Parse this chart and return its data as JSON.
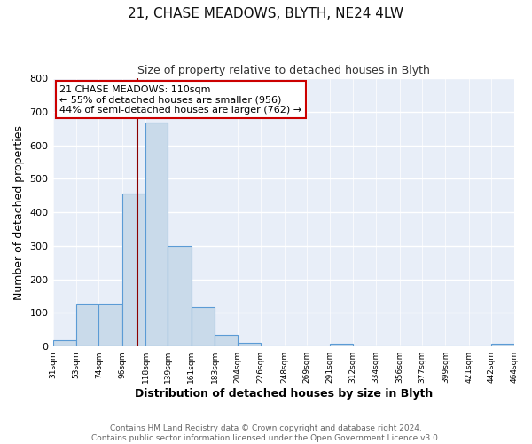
{
  "title": "21, CHASE MEADOWS, BLYTH, NE24 4LW",
  "subtitle": "Size of property relative to detached houses in Blyth",
  "xlabel": "Distribution of detached houses by size in Blyth",
  "ylabel": "Number of detached properties",
  "bar_color": "#c9daea",
  "bar_edge_color": "#5b9bd5",
  "bin_edges": [
    31,
    53,
    74,
    96,
    118,
    139,
    161,
    183,
    204,
    226,
    248,
    269,
    291,
    312,
    334,
    356,
    377,
    399,
    421,
    442,
    464
  ],
  "bar_heights": [
    18,
    127,
    128,
    457,
    669,
    300,
    116,
    35,
    12,
    0,
    0,
    0,
    8,
    0,
    0,
    0,
    0,
    0,
    0,
    8
  ],
  "tick_labels": [
    "31sqm",
    "53sqm",
    "74sqm",
    "96sqm",
    "118sqm",
    "139sqm",
    "161sqm",
    "183sqm",
    "204sqm",
    "226sqm",
    "248sqm",
    "269sqm",
    "291sqm",
    "312sqm",
    "334sqm",
    "356sqm",
    "377sqm",
    "399sqm",
    "421sqm",
    "442sqm",
    "464sqm"
  ],
  "vline_x": 110,
  "vline_color": "#8b0000",
  "annotation_line1": "21 CHASE MEADOWS: 110sqm",
  "annotation_line2": "← 55% of detached houses are smaller (956)",
  "annotation_line3": "44% of semi-detached houses are larger (762) →",
  "annotation_box_color": "#ffffff",
  "annotation_box_edge_color": "#cc0000",
  "ylim": [
    0,
    800
  ],
  "yticks": [
    0,
    100,
    200,
    300,
    400,
    500,
    600,
    700,
    800
  ],
  "footer_line1": "Contains HM Land Registry data © Crown copyright and database right 2024.",
  "footer_line2": "Contains public sector information licensed under the Open Government Licence v3.0.",
  "bg_color": "#ffffff",
  "plot_bg_color": "#e8eef8"
}
